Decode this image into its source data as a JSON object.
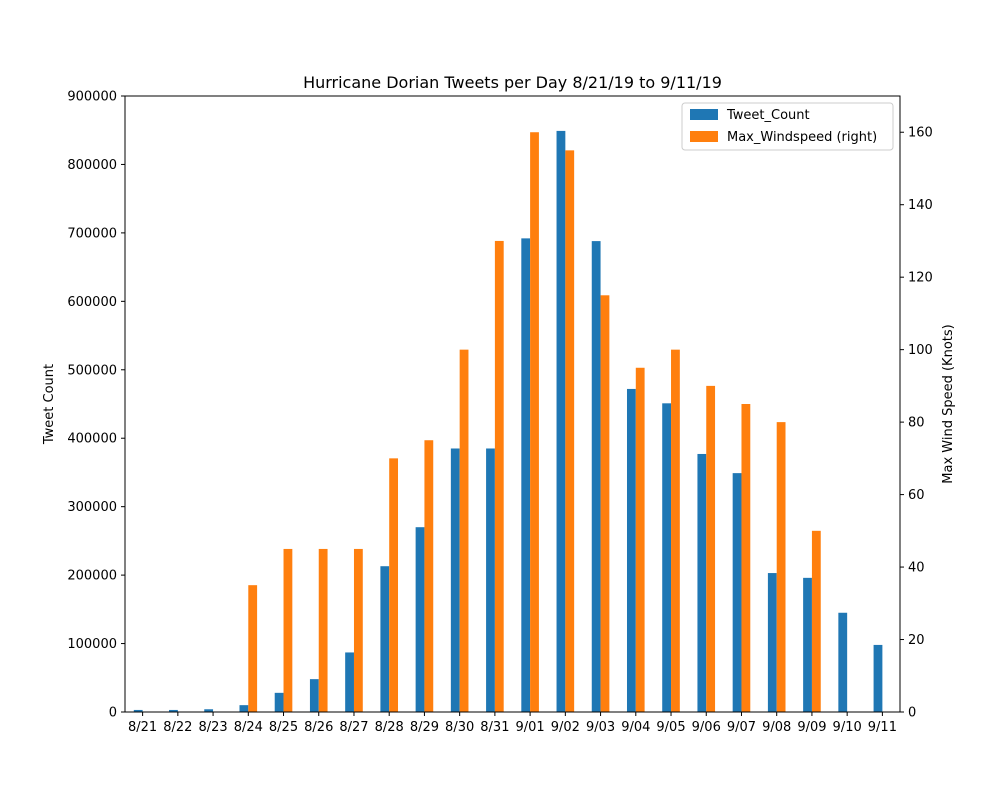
{
  "chart_data": {
    "type": "bar",
    "title": "Hurricane Dorian Tweets per Day 8/21/19 to 9/11/19",
    "xlabel": "",
    "ylabel": "Tweet Count",
    "y2label": "Max Wind Speed (Knots)",
    "categories": [
      "8/21",
      "8/22",
      "8/23",
      "8/24",
      "8/25",
      "8/26",
      "8/27",
      "8/28",
      "8/29",
      "8/30",
      "8/31",
      "9/01",
      "9/02",
      "9/03",
      "9/04",
      "9/05",
      "9/06",
      "9/07",
      "9/08",
      "9/09",
      "9/10",
      "9/11"
    ],
    "ylim": [
      0,
      900000
    ],
    "y2lim": [
      0,
      170
    ],
    "yticks": [
      0,
      100000,
      200000,
      300000,
      400000,
      500000,
      600000,
      700000,
      800000,
      900000
    ],
    "y2ticks": [
      0,
      20,
      40,
      60,
      80,
      100,
      120,
      140,
      160
    ],
    "grid": false,
    "legend_position": "top-right",
    "series": [
      {
        "name": "Tweet_Count",
        "axis": "left",
        "color": "#1f77b4",
        "values": [
          3000,
          3000,
          4000,
          10000,
          28000,
          48000,
          87000,
          213000,
          270000,
          385000,
          385000,
          692000,
          849000,
          688000,
          472000,
          451000,
          377000,
          349000,
          203000,
          196000,
          145000,
          98000
        ]
      },
      {
        "name": "Max_Windspeed (right)",
        "axis": "right",
        "color": "#ff7f0e",
        "values": [
          0,
          0,
          0,
          35,
          45,
          45,
          45,
          70,
          75,
          100,
          130,
          160,
          155,
          115,
          95,
          100,
          90,
          85,
          80,
          50,
          0,
          0
        ]
      }
    ]
  }
}
